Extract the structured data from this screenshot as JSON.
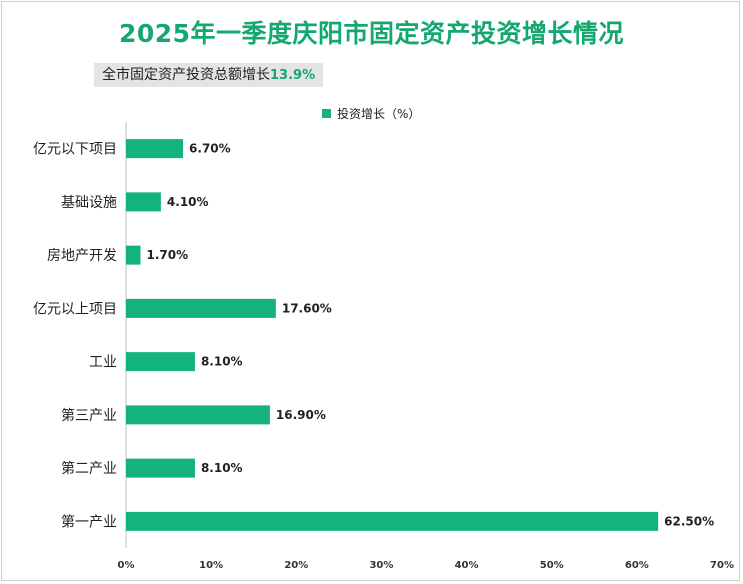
{
  "title": "2025年一季度庆阳市固定资产投资增长情况",
  "subtitle": {
    "label": "全市固定资产投资总额增长",
    "value": "13.9%"
  },
  "colors": {
    "bar": "#14b37d",
    "title": "#14a86f"
  },
  "chart_data": {
    "type": "bar",
    "orientation": "horizontal",
    "categories": [
      "亿元以下项目",
      "基础设施",
      "房地产开发",
      "亿元以上项目",
      "工业",
      "第三产业",
      "第二产业",
      "第一产业"
    ],
    "series": [
      {
        "name": "投资增长（%）",
        "values": [
          6.7,
          4.1,
          1.7,
          17.6,
          8.1,
          16.9,
          8.1,
          62.5
        ],
        "labels": [
          "6.70%",
          "4.10%",
          "1.70%",
          "17.60%",
          "8.10%",
          "16.90%",
          "8.10%",
          "62.50%"
        ]
      }
    ],
    "xlim": [
      0,
      70
    ],
    "xticks": [
      "0%",
      "10%",
      "20%",
      "30%",
      "40%",
      "50%",
      "60%",
      "70%"
    ],
    "legend": "top-center",
    "grid": false
  }
}
